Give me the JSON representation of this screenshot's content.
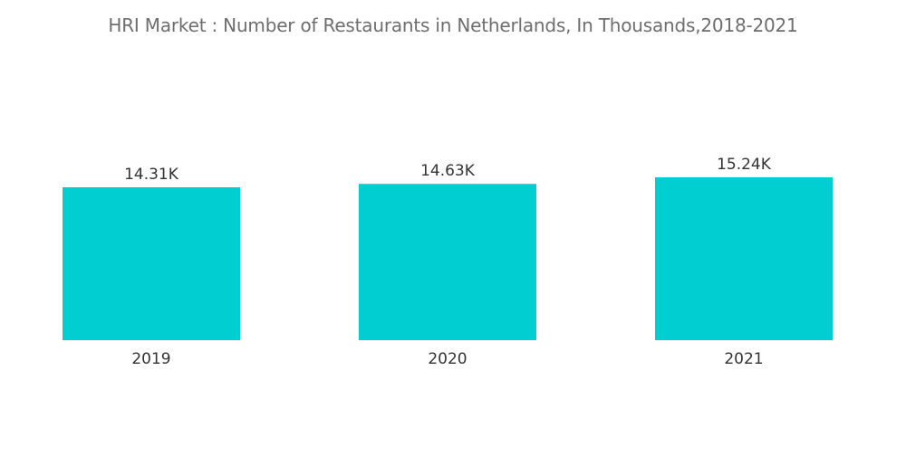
{
  "chart_data": {
    "type": "bar",
    "title": "HRI Market : Number of Restaurants in Netherlands, In Thousands,2018-2021",
    "categories": [
      "2019",
      "2020",
      "2021"
    ],
    "values": [
      14.31,
      14.63,
      15.24
    ],
    "value_labels": [
      "14.31K",
      "14.63K",
      "15.24K"
    ],
    "xlabel": "",
    "ylabel": "",
    "grid": false,
    "legend": "none",
    "bar_color": "#00CED1"
  }
}
